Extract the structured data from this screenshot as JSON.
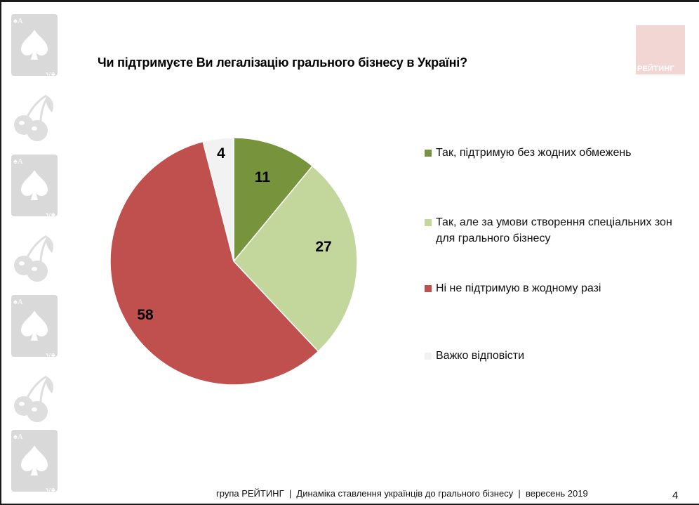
{
  "slide": {
    "title": "Чи підтримуєте Ви легалізацію грального бізнесу в Україні?",
    "logo_text": "РЕЙТИНГ",
    "footer": "група РЕЙТИНГ  |  Динаміка ставлення українців до грального бізнесу  |  вересень 2019",
    "page_number": "4",
    "sidebar_icons": [
      "ace-of-spades-card-icon",
      "cherry-icon",
      "ace-of-spades-card-icon",
      "cherry-icon",
      "ace-of-spades-card-icon",
      "cherry-icon",
      "ace-of-spades-card-icon"
    ]
  },
  "legend": [
    {
      "label": "Так, підтримую без жодних обмежень",
      "color": "#77933c"
    },
    {
      "label": "Так, але за умови створення спеціальних зон для грального бізнесу",
      "color": "#c3d69b"
    },
    {
      "label": "Ні не підтримую в жодному разі",
      "color": "#c0504d"
    },
    {
      "label": "Важко відповісти",
      "color": "#f2f2f2"
    }
  ],
  "chart_data": {
    "type": "pie",
    "title": "Чи підтримуєте Ви легалізацію грального бізнесу в Україні?",
    "categories": [
      "Так, підтримую без жодних обмежень",
      "Так, але за умови створення спеціальних зон для грального бізнесу",
      "Ні не підтримую в жодному разі",
      "Важко відповісти"
    ],
    "values": [
      11,
      27,
      58,
      4
    ],
    "data_labels": [
      "11",
      "27",
      "58",
      "4"
    ],
    "colors": [
      "#77933c",
      "#c3d69b",
      "#c0504d",
      "#f2f2f2"
    ],
    "start_angle": "12 o'clock, clockwise",
    "legend_position": "right",
    "unit": "%"
  }
}
